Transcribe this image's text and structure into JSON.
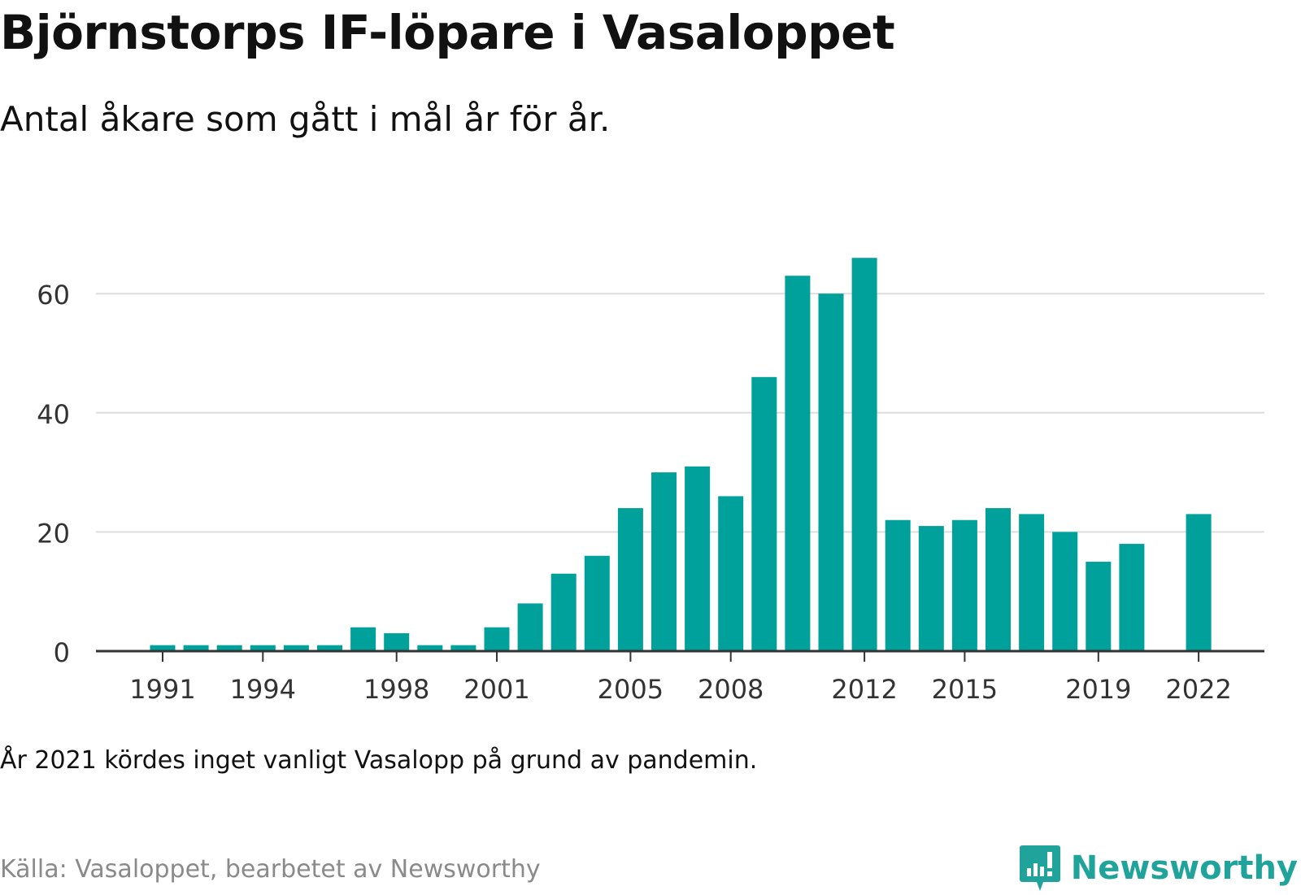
{
  "header": {
    "title": "Björnstorps IF-löpare i Vasaloppet",
    "subtitle": "Antal åkare som gått i mål år för år."
  },
  "footer": {
    "note": "År 2021 kördes inget vanligt Vasalopp på grund av pandemin.",
    "source": "Källa: Vasaloppet, bearbetet av Newsworthy",
    "brand": "Newsworthy",
    "brand_icon": "newsworthy-logo-icon"
  },
  "colors": {
    "bar": "#00a19a",
    "grid": "#dddddd",
    "axis": "#333333",
    "brand": "#1fa39a"
  },
  "chart_data": {
    "type": "bar",
    "categories": [
      1991,
      1992,
      1993,
      1994,
      1995,
      1996,
      1997,
      1998,
      1999,
      2000,
      2001,
      2002,
      2003,
      2004,
      2005,
      2006,
      2007,
      2008,
      2009,
      2010,
      2011,
      2012,
      2013,
      2014,
      2015,
      2016,
      2017,
      2018,
      2019,
      2020,
      2021,
      2022
    ],
    "values": [
      1,
      1,
      1,
      1,
      1,
      1,
      4,
      3,
      1,
      1,
      4,
      8,
      13,
      16,
      24,
      30,
      31,
      26,
      46,
      63,
      60,
      66,
      22,
      21,
      22,
      24,
      23,
      20,
      15,
      18,
      null,
      23
    ],
    "x_tick_labels": [
      "1991",
      "1994",
      "1998",
      "2001",
      "2005",
      "2008",
      "2012",
      "2015",
      "2019",
      "2022"
    ],
    "y_ticks": [
      0,
      20,
      40,
      60
    ],
    "ylim": [
      0,
      68
    ],
    "xlabel": "",
    "ylabel": "",
    "grid": true
  }
}
